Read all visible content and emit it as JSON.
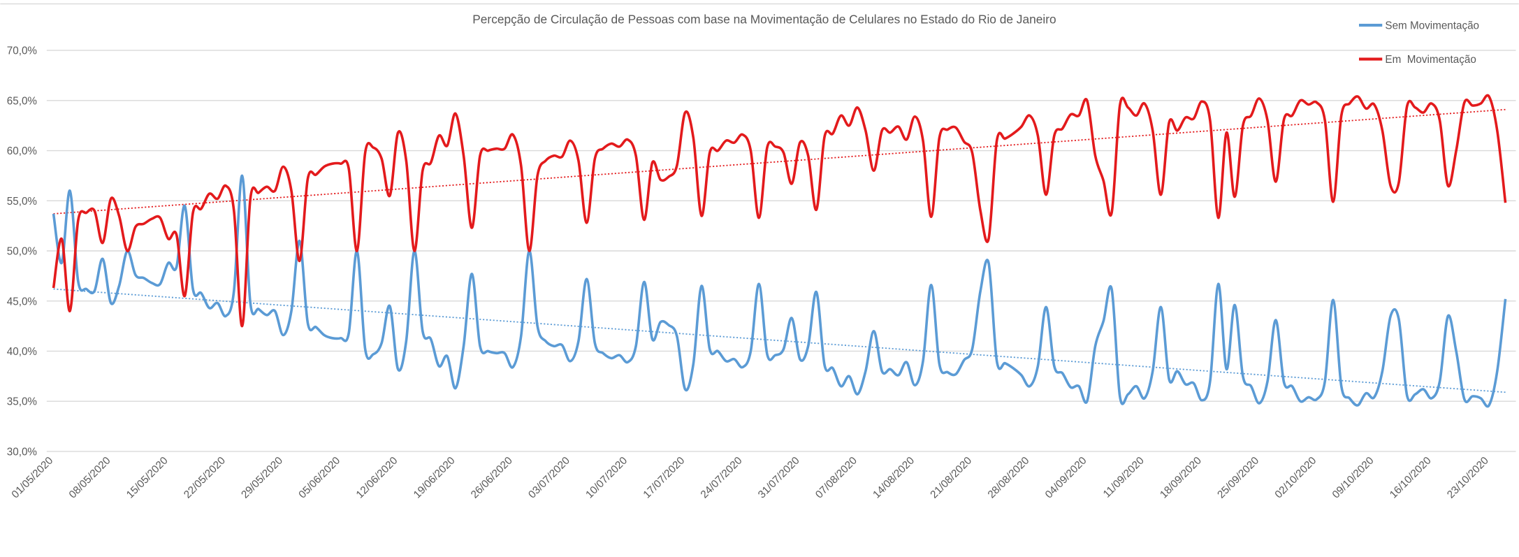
{
  "chart_data": {
    "type": "line",
    "title": "Percepção de Circulação de Pessoas com base na Movimentação de Celulares no Estado do Rio de Janeiro",
    "categories": [
      "01/05/2020",
      null,
      null,
      null,
      null,
      null,
      null,
      "08/05/2020",
      null,
      null,
      null,
      null,
      null,
      null,
      "15/05/2020",
      null,
      null,
      null,
      null,
      null,
      null,
      "22/05/2020",
      null,
      null,
      null,
      null,
      null,
      null,
      "29/05/2020",
      null,
      null,
      null,
      null,
      null,
      null,
      "05/06/2020",
      null,
      null,
      null,
      null,
      null,
      null,
      "12/06/2020",
      null,
      null,
      null,
      null,
      null,
      null,
      "19/06/2020",
      null,
      null,
      null,
      null,
      null,
      null,
      "26/06/2020",
      null,
      null,
      null,
      null,
      null,
      null,
      "03/07/2020",
      null,
      null,
      null,
      null,
      null,
      null,
      "10/07/2020",
      null,
      null,
      null,
      null,
      null,
      null,
      "17/07/2020",
      null,
      null,
      null,
      null,
      null,
      null,
      "24/07/2020",
      null,
      null,
      null,
      null,
      null,
      null,
      "31/07/2020",
      null,
      null,
      null,
      null,
      null,
      null,
      "07/08/2020",
      null,
      null,
      null,
      null,
      null,
      null,
      "14/08/2020",
      null,
      null,
      null,
      null,
      null,
      null,
      "21/08/2020",
      null,
      null,
      null,
      null,
      null,
      null,
      "28/08/2020",
      null,
      null,
      null,
      null,
      null,
      null,
      "04/09/2020",
      null,
      null,
      null,
      null,
      null,
      null,
      "11/09/2020",
      null,
      null,
      null,
      null,
      null,
      null,
      "18/09/2020",
      null,
      null,
      null,
      null,
      null,
      null,
      "25/09/2020",
      null,
      null,
      null,
      null,
      null,
      null,
      "02/10/2020",
      null,
      null,
      null,
      null,
      null,
      null,
      "09/10/2020",
      null,
      null,
      null,
      null,
      null,
      null,
      "16/10/2020",
      null,
      null,
      null,
      null,
      null,
      null,
      "23/10/2020",
      null,
      null
    ],
    "series": [
      {
        "name": "Sem Movimentação",
        "color": "#5b9bd5",
        "trend": [
          46.2,
          35.9
        ],
        "values": [
          53.7,
          48.8,
          56.0,
          47.0,
          46.2,
          46.0,
          49.2,
          44.8,
          46.5,
          50.0,
          47.6,
          47.3,
          46.8,
          46.7,
          48.8,
          48.4,
          54.5,
          46.2,
          45.8,
          44.3,
          44.8,
          43.5,
          46.0,
          57.5,
          44.8,
          44.2,
          43.6,
          44.0,
          41.6,
          44.0,
          51.0,
          42.8,
          42.4,
          41.6,
          41.3,
          41.3,
          41.8,
          50.0,
          40.2,
          39.7,
          40.8,
          44.5,
          38.2,
          41.0,
          50.0,
          42.0,
          41.2,
          38.5,
          39.5,
          36.3,
          40.5,
          47.7,
          40.5,
          40.0,
          39.8,
          39.8,
          38.4,
          41.5,
          50.0,
          42.5,
          41.0,
          40.5,
          40.6,
          39.0,
          41.0,
          47.2,
          40.8,
          39.8,
          39.3,
          39.6,
          38.9,
          40.5,
          46.9,
          41.2,
          42.9,
          42.6,
          41.5,
          36.2,
          38.7,
          46.5,
          40.2,
          40.0,
          39.0,
          39.2,
          38.4,
          40.0,
          46.7,
          39.7,
          39.6,
          40.2,
          43.3,
          39.2,
          40.5,
          45.9,
          38.6,
          38.3,
          36.5,
          37.5,
          35.7,
          38.0,
          42.0,
          38.0,
          38.2,
          37.6,
          38.9,
          36.6,
          39.0,
          46.6,
          38.7,
          37.9,
          37.7,
          39.1,
          40.2,
          46.0,
          48.8,
          39.0,
          38.8,
          38.3,
          37.6,
          36.5,
          38.5,
          44.4,
          38.5,
          37.8,
          36.4,
          36.5,
          35.0,
          40.5,
          43.0,
          46.2,
          35.5,
          35.7,
          36.5,
          35.3,
          38.0,
          44.4,
          37.2,
          38.0,
          36.7,
          36.8,
          35.1,
          37.0,
          46.7,
          38.2,
          44.6,
          37.5,
          36.5,
          34.8,
          37.0,
          43.1,
          36.9,
          36.5,
          35.0,
          35.4,
          35.2,
          37.0,
          45.1,
          36.5,
          35.3,
          34.6,
          35.8,
          35.4,
          38.0,
          43.5,
          43.2,
          35.6,
          35.7,
          36.2,
          35.3,
          37.0,
          43.5,
          40.0,
          35.2,
          35.5,
          35.3,
          34.6,
          38.0,
          45.2
        ]
      },
      {
        "name": "Em  Movimentação",
        "color": "#e31a1c",
        "trend": [
          53.7,
          64.1
        ],
        "values": [
          46.3,
          51.2,
          44.0,
          53.0,
          53.8,
          54.0,
          50.8,
          55.2,
          53.5,
          50.0,
          52.4,
          52.7,
          53.2,
          53.3,
          51.2,
          51.6,
          45.5,
          53.8,
          54.2,
          55.7,
          55.2,
          56.5,
          54.0,
          42.5,
          55.2,
          55.8,
          56.4,
          56.0,
          58.4,
          56.0,
          49.0,
          57.2,
          57.6,
          58.4,
          58.7,
          58.7,
          58.2,
          50.0,
          59.8,
          60.3,
          59.2,
          55.5,
          61.8,
          59.0,
          50.0,
          58.0,
          58.8,
          61.5,
          60.5,
          63.7,
          59.5,
          52.3,
          59.5,
          60.0,
          60.2,
          60.2,
          61.6,
          58.5,
          50.0,
          57.5,
          59.0,
          59.5,
          59.4,
          61.0,
          59.0,
          52.8,
          59.2,
          60.2,
          60.7,
          60.4,
          61.1,
          59.5,
          53.1,
          58.8,
          57.1,
          57.4,
          58.5,
          63.8,
          61.3,
          53.5,
          59.8,
          60.0,
          61.0,
          60.8,
          61.6,
          60.0,
          53.3,
          60.3,
          60.4,
          59.8,
          56.7,
          60.8,
          59.5,
          54.1,
          61.4,
          61.7,
          63.5,
          62.5,
          64.3,
          62.0,
          58.0,
          62.0,
          61.8,
          62.4,
          61.1,
          63.4,
          61.0,
          53.4,
          61.3,
          62.1,
          62.3,
          60.9,
          59.8,
          54.0,
          51.2,
          61.0,
          61.2,
          61.7,
          62.4,
          63.5,
          61.5,
          55.6,
          61.5,
          62.2,
          63.6,
          63.5,
          65.0,
          59.5,
          57.0,
          53.8,
          64.5,
          64.3,
          63.5,
          64.7,
          62.0,
          55.6,
          62.8,
          62.0,
          63.3,
          63.2,
          64.9,
          63.0,
          53.3,
          61.8,
          55.4,
          62.5,
          63.5,
          65.2,
          63.0,
          56.9,
          63.1,
          63.5,
          65.0,
          64.6,
          64.8,
          63.0,
          54.9,
          63.5,
          64.7,
          65.4,
          64.2,
          64.6,
          62.0,
          56.5,
          56.8,
          64.4,
          64.3,
          63.8,
          64.7,
          63.0,
          56.5,
          60.0,
          64.8,
          64.5,
          64.7,
          65.4,
          62.0,
          54.8
        ]
      }
    ],
    "ylim": [
      30,
      70
    ],
    "yticks": [
      {
        "value": 30,
        "label": "30,0%"
      },
      {
        "value": 35,
        "label": "35,0%"
      },
      {
        "value": 40,
        "label": "40,0%"
      },
      {
        "value": 45,
        "label": "45,0%"
      },
      {
        "value": 50,
        "label": "50,0%"
      },
      {
        "value": 55,
        "label": "55,0%"
      },
      {
        "value": 60,
        "label": "60,0%"
      },
      {
        "value": 65,
        "label": "65,0%"
      },
      {
        "value": 70,
        "label": "70,0%"
      }
    ],
    "grid": true,
    "legend": "top-right"
  }
}
